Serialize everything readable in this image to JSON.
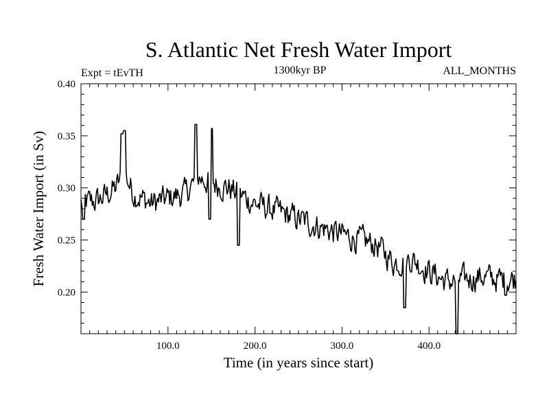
{
  "chart_data": {
    "type": "line",
    "title": "S. Atlantic Net Fresh Water Import",
    "subtitle_left": "Expt = tEvTH",
    "subtitle_center": "1300kyr BP",
    "subtitle_right": "ALL_MONTHS",
    "xlabel": "Time (in years since start)",
    "ylabel": "Fresh Water Import (in Sv)",
    "xlim": [
      0,
      500
    ],
    "ylim": [
      0.16,
      0.4
    ],
    "x_tick_labels": [
      "100.0",
      "200.0",
      "300.0",
      "400.0"
    ],
    "x_tick_values": [
      100,
      200,
      300,
      400
    ],
    "y_tick_labels": [
      "0.40",
      "0.35",
      "0.30",
      "0.25",
      "0.20"
    ],
    "y_tick_values": [
      0.4,
      0.35,
      0.3,
      0.25,
      0.2
    ],
    "series": [
      {
        "name": "Net Fresh Water Import",
        "trend_points": [
          {
            "x": 0,
            "y": 0.285
          },
          {
            "x": 20,
            "y": 0.288
          },
          {
            "x": 40,
            "y": 0.3
          },
          {
            "x": 50,
            "y": 0.315
          },
          {
            "x": 60,
            "y": 0.295
          },
          {
            "x": 80,
            "y": 0.285
          },
          {
            "x": 100,
            "y": 0.29
          },
          {
            "x": 120,
            "y": 0.295
          },
          {
            "x": 135,
            "y": 0.31
          },
          {
            "x": 150,
            "y": 0.305
          },
          {
            "x": 170,
            "y": 0.3
          },
          {
            "x": 200,
            "y": 0.285
          },
          {
            "x": 250,
            "y": 0.27
          },
          {
            "x": 300,
            "y": 0.255
          },
          {
            "x": 340,
            "y": 0.245
          },
          {
            "x": 360,
            "y": 0.228
          },
          {
            "x": 380,
            "y": 0.232
          },
          {
            "x": 400,
            "y": 0.22
          },
          {
            "x": 420,
            "y": 0.21
          },
          {
            "x": 440,
            "y": 0.212
          },
          {
            "x": 460,
            "y": 0.215
          },
          {
            "x": 480,
            "y": 0.212
          },
          {
            "x": 500,
            "y": 0.213
          }
        ],
        "extremes": [
          {
            "x": 3,
            "y": 0.27
          },
          {
            "x": 47,
            "y": 0.352
          },
          {
            "x": 50,
            "y": 0.355
          },
          {
            "x": 132,
            "y": 0.361
          },
          {
            "x": 150,
            "y": 0.357
          },
          {
            "x": 148,
            "y": 0.27
          },
          {
            "x": 181,
            "y": 0.245
          },
          {
            "x": 372,
            "y": 0.185
          },
          {
            "x": 432,
            "y": 0.16
          },
          {
            "x": 488,
            "y": 0.197
          }
        ],
        "noise_amplitude": 0.02,
        "n_points": 500,
        "color": "#000000"
      }
    ]
  }
}
